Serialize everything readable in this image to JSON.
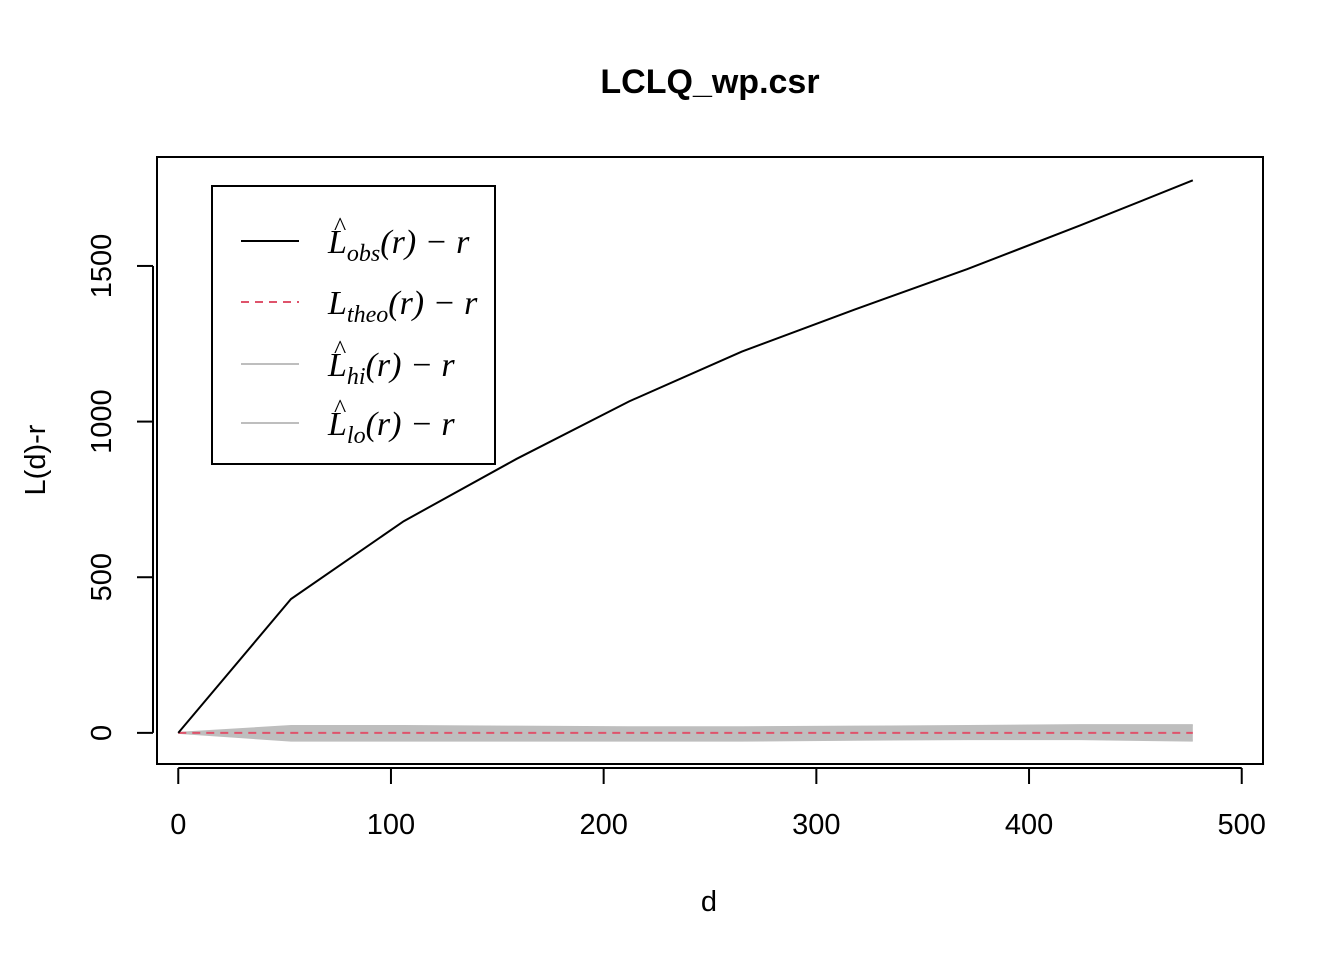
{
  "chart_data": {
    "type": "line",
    "title": "LCLQ_wp.csr",
    "xlabel": "d",
    "ylabel": "L(d)-r",
    "xlim": [
      -10,
      510
    ],
    "ylim": [
      -100,
      1850
    ],
    "x_ticks": [
      "0",
      "100",
      "200",
      "300",
      "400",
      "500"
    ],
    "y_ticks": [
      "0",
      "500",
      "1000",
      "1500"
    ],
    "grid": false,
    "legend_position": "top-left",
    "x": [
      0,
      53,
      106,
      159,
      212,
      265,
      318,
      371,
      424,
      477
    ],
    "series": [
      {
        "name": "L̂obs(r) − r",
        "color": "#000000",
        "dash": "solid",
        "values": [
          0,
          430,
          680,
          880,
          1065,
          1225,
          1360,
          1490,
          1630,
          1775
        ]
      },
      {
        "name": "Ltheo(r) − r",
        "color": "#DF536B",
        "dash": "dashed",
        "values": [
          0,
          0,
          0,
          0,
          0,
          0,
          0,
          0,
          0,
          0
        ]
      },
      {
        "name": "L̂hi(r) − r",
        "color": "#BEBEBE",
        "dash": "solid",
        "values": [
          0,
          22,
          22,
          20,
          18,
          18,
          20,
          22,
          25,
          25
        ]
      },
      {
        "name": "L̂lo(r) − r",
        "color": "#BEBEBE",
        "dash": "solid",
        "values": [
          0,
          -25,
          -25,
          -25,
          -25,
          -25,
          -22,
          -20,
          -20,
          -25
        ]
      }
    ],
    "legend": [
      {
        "main": "L",
        "hat": true,
        "sub": "obs",
        "tail": "(r) − r",
        "color": "#000000",
        "dash": "solid"
      },
      {
        "main": "L",
        "hat": false,
        "sub": "theo",
        "tail": "(r) − r",
        "color": "#DF536B",
        "dash": "dashed"
      },
      {
        "main": "L",
        "hat": true,
        "sub": "hi",
        "tail": "(r) − r",
        "color": "#BEBEBE",
        "dash": "solid"
      },
      {
        "main": "L",
        "hat": true,
        "sub": "lo",
        "tail": "(r) − r",
        "color": "#BEBEBE",
        "dash": "solid"
      }
    ],
    "band_color": "#BEBEBE"
  }
}
